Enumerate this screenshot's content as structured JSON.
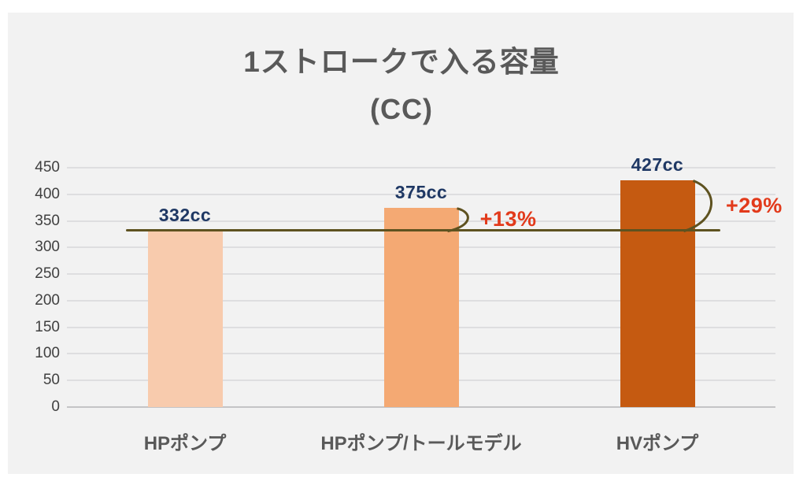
{
  "title": {
    "line1": "1ストロークで入る容量",
    "line2": "(CC)"
  },
  "chart_data": {
    "type": "bar",
    "title": "1ストロークで入る容量",
    "subtitle": "(CC)",
    "categories": [
      "HPポンプ",
      "HPポンプ/トールモデル",
      "HVポンプ"
    ],
    "values": [
      332,
      375,
      427
    ],
    "value_labels": [
      "332cc",
      "375cc",
      "427cc"
    ],
    "bar_colors": [
      "#F8CBAD",
      "#F4A973",
      "#C55A11"
    ],
    "ylim": [
      0,
      450
    ],
    "y_tick_step": 50,
    "grid": true,
    "legend_position": "none",
    "reference_line": {
      "value": 332,
      "color": "#5E5220"
    },
    "annotations": [
      {
        "bar_index": 1,
        "label": "+13%"
      },
      {
        "bar_index": 2,
        "label": "+29%"
      }
    ],
    "colors": {
      "value_label": "#1F3864",
      "annotation": "#E23A1B",
      "axis_text": "#404040",
      "category_text": "#595959",
      "title_text": "#595959",
      "panel_bg": "#F2F2F2",
      "gridline": "#DEDEE0",
      "axis_line": "#C4C4C6"
    }
  }
}
